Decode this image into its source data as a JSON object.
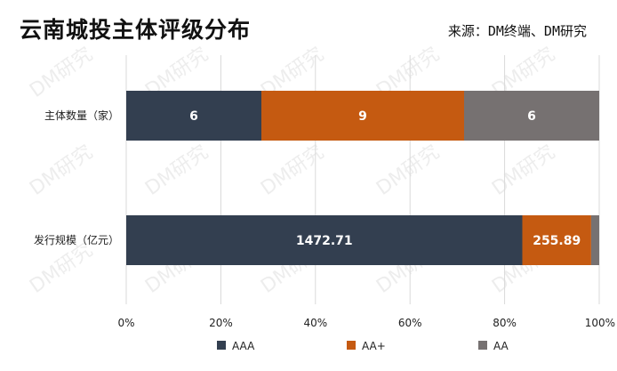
{
  "header": {
    "title": "云南城投主体评级分布",
    "source": "来源：DM终端、DM研究"
  },
  "watermark": "DM研究",
  "chart_data": {
    "type": "bar",
    "orientation": "horizontal",
    "stacked": "percent",
    "categories": [
      "主体数量（家）",
      "发行规模（亿元）"
    ],
    "series": [
      {
        "name": "AAA",
        "color": "#333f50",
        "values": [
          6,
          1472.71
        ],
        "labels": [
          "6",
          "1472.71"
        ]
      },
      {
        "name": "AA+",
        "color": "#c55a11",
        "values": [
          9,
          255.89
        ],
        "labels": [
          "9",
          "255.89"
        ]
      },
      {
        "name": "AA",
        "color": "#767171",
        "values": [
          6,
          30.0
        ],
        "labels": [
          "6",
          ""
        ]
      }
    ],
    "x_ticks": [
      "0%",
      "20%",
      "40%",
      "60%",
      "80%",
      "100%"
    ],
    "xlim": [
      0,
      100
    ],
    "grid": true,
    "legend": "bottom"
  }
}
